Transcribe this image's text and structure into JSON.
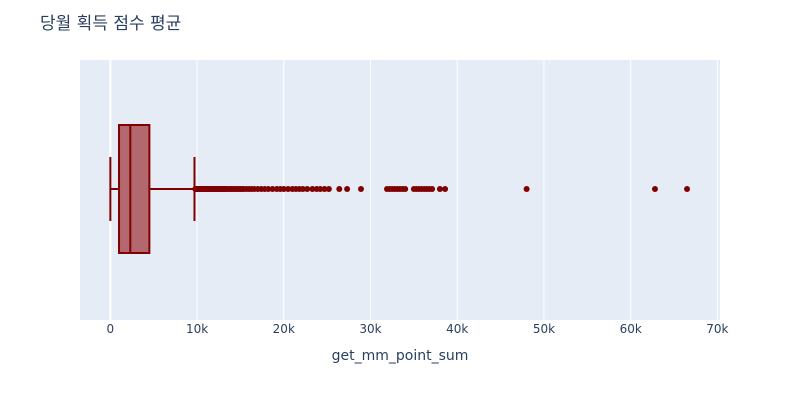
{
  "chart_data": {
    "type": "box",
    "title": "당월 획득 점수 평균",
    "xlabel": "get_mm_point_sum",
    "ylabel": "",
    "orientation": "horizontal",
    "xlim": [
      -3500,
      70300
    ],
    "x_ticks": [
      {
        "value": 0,
        "label": "0"
      },
      {
        "value": 10000,
        "label": "10k"
      },
      {
        "value": 20000,
        "label": "20k"
      },
      {
        "value": 30000,
        "label": "30k"
      },
      {
        "value": 40000,
        "label": "40k"
      },
      {
        "value": 50000,
        "label": "50k"
      },
      {
        "value": 60000,
        "label": "60k"
      },
      {
        "value": 70000,
        "label": "70k"
      }
    ],
    "grid": true,
    "box": {
      "min": 0,
      "q1": 1000,
      "median": 2300,
      "q3": 4500,
      "upper_fence": 9700
    },
    "outliers": [
      9800,
      9900,
      10000,
      10100,
      10200,
      10300,
      10400,
      10500,
      10600,
      10700,
      10800,
      10900,
      11000,
      11100,
      11200,
      11300,
      11400,
      11500,
      11600,
      11700,
      11800,
      11900,
      12000,
      12100,
      12200,
      12300,
      12400,
      12500,
      12600,
      12700,
      12800,
      12900,
      13000,
      13100,
      13200,
      13300,
      13400,
      13600,
      13800,
      14000,
      14200,
      14400,
      14600,
      14800,
      15000,
      15200,
      15400,
      15700,
      16000,
      16300,
      16600,
      17000,
      17400,
      17800,
      18200,
      18700,
      19200,
      19600,
      20000,
      20500,
      21000,
      21400,
      21800,
      22200,
      22700,
      23300,
      23800,
      24200,
      24700,
      25200,
      26400,
      27300,
      28900,
      31900,
      32200,
      32500,
      32800,
      33100,
      33400,
      33700,
      34000,
      35000,
      35300,
      35600,
      35900,
      36200,
      36500,
      36800,
      37100,
      38000,
      38600,
      48000,
      62800,
      66500
    ],
    "colors": {
      "box_line": "#800000",
      "box_fill": "#b3676f",
      "outlier": "#800000",
      "plot_bg": "#e5ecf6",
      "grid": "#ffffff"
    }
  }
}
